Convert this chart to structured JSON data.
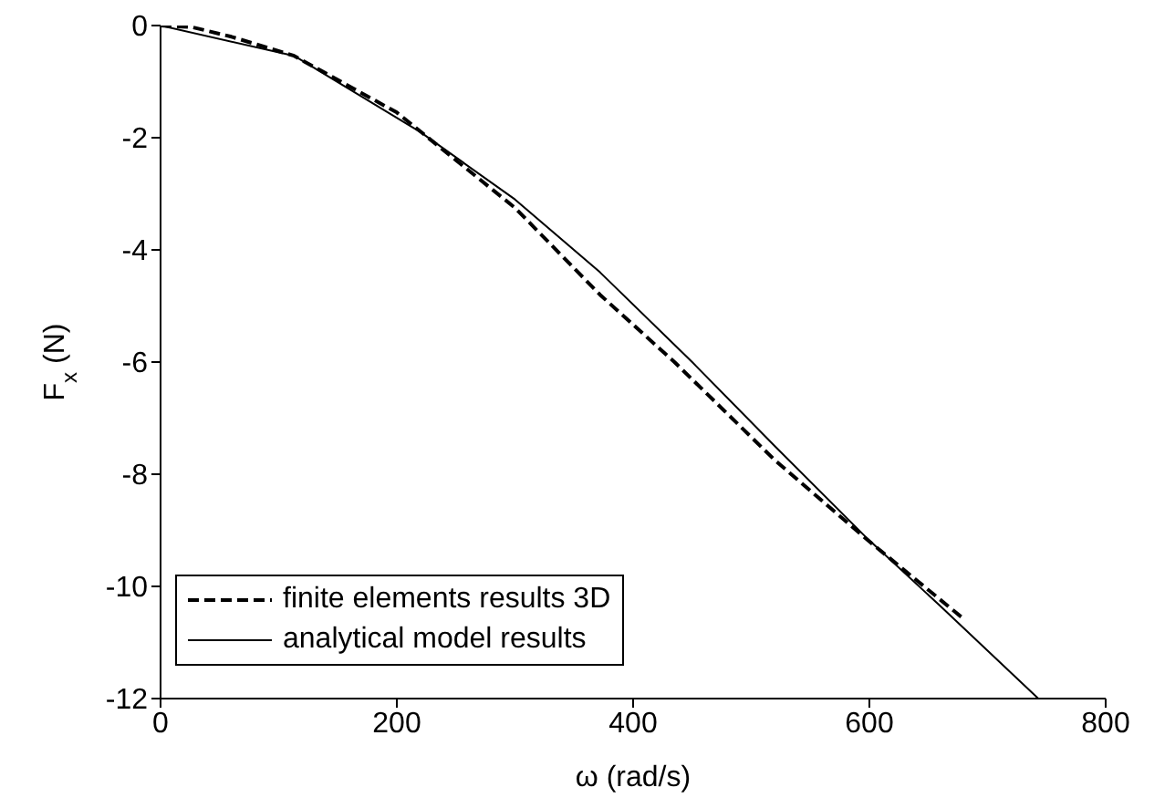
{
  "chart_data": {
    "type": "line",
    "xlabel": "ω (rad/s)",
    "ylabel": "F$_{x}$ (N)",
    "xlim": [
      0,
      800
    ],
    "xticks": [
      0,
      200,
      400,
      600,
      800
    ],
    "ylim": [
      -12,
      0
    ],
    "yticks": [
      -12,
      -10,
      -8,
      -6,
      -4,
      -2,
      0
    ],
    "grid": false,
    "legend": "bottom left",
    "marker": "none",
    "series": [
      {
        "name": "finite elements results 3D",
        "color": "#000000",
        "line_style": "dashed",
        "x": [
          0,
          27,
          60,
          113,
          200,
          300,
          372,
          435,
          520,
          600,
          681
        ],
        "values": [
          0,
          -0.03,
          -0.2,
          -0.54,
          -1.55,
          -3.25,
          -4.8,
          -6.0,
          -7.75,
          -9.2,
          -10.6
        ]
      },
      {
        "name": "analytical model results",
        "color": "#000000",
        "line_style": "solid",
        "x": [
          0,
          113,
          220,
          300,
          372,
          450,
          520,
          596,
          660,
          743
        ],
        "values": [
          0,
          -0.54,
          -1.9,
          -3.1,
          -4.4,
          -6.0,
          -7.5,
          -9.1,
          -10.35,
          -12
        ]
      }
    ]
  }
}
